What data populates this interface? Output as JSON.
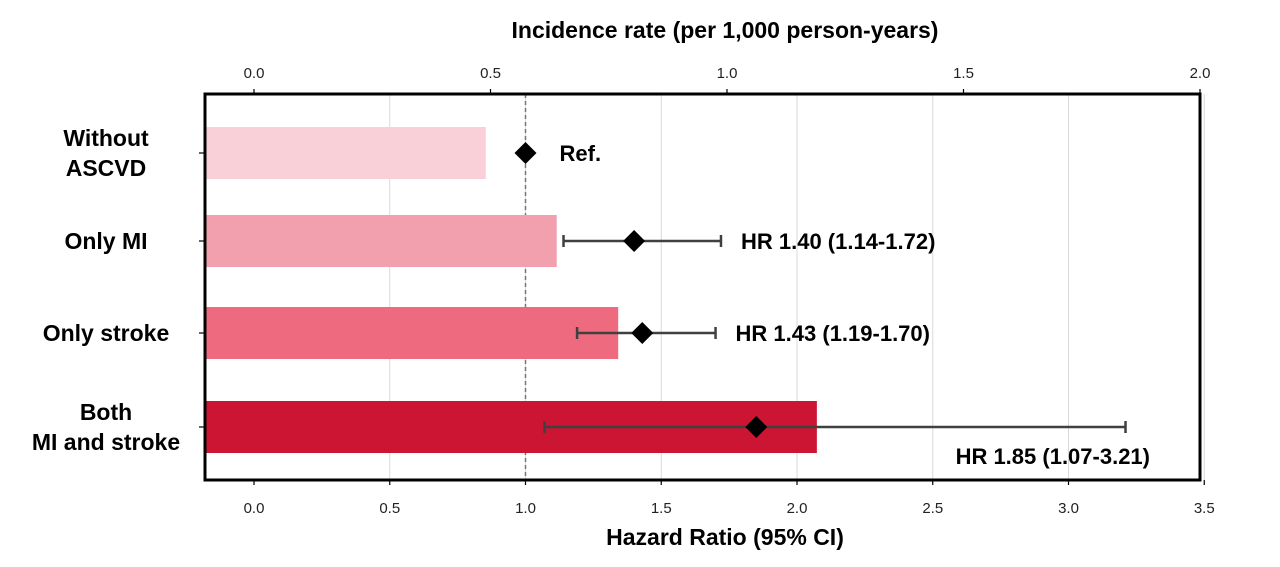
{
  "chart_data": {
    "type": "bar",
    "orientation": "horizontal",
    "categories": [
      [
        "Without",
        "ASCVD"
      ],
      [
        "Only MI"
      ],
      [
        "Only stroke"
      ],
      [
        "Both",
        "MI and stroke"
      ]
    ],
    "incidence_axis": {
      "title": "Incidence rate (per 1,000 person-years)",
      "range": [
        0,
        2.0
      ],
      "ticks": [
        "0.0",
        "0.5",
        "1.0",
        "1.5",
        "2.0"
      ]
    },
    "hr_axis": {
      "title": "Hazard Ratio (95%  CI)",
      "range": [
        0,
        3.5
      ],
      "ticks": [
        "0.0",
        "0.5",
        "1.0",
        "1.5",
        "2.0",
        "2.5",
        "3.0",
        "3.5"
      ],
      "reference": 1.0
    },
    "incidence_rates": [
      0.49,
      0.64,
      0.77,
      1.19
    ],
    "bar_colors": [
      "#f9d0d8",
      "#f3a0ae",
      "#ee6a7e",
      "#cc1433"
    ],
    "hazard_ratios": [
      {
        "hr": 1.0,
        "lower": null,
        "upper": null,
        "label": "Ref."
      },
      {
        "hr": 1.4,
        "lower": 1.14,
        "upper": 1.72,
        "label": "HR 1.40 (1.14-1.72)"
      },
      {
        "hr": 1.43,
        "lower": 1.19,
        "upper": 1.7,
        "label": "HR 1.43 (1.19-1.70)"
      },
      {
        "hr": 1.85,
        "lower": 1.07,
        "upper": 3.21,
        "label": "HR 1.85 (1.07-3.21)"
      }
    ],
    "grid": true
  }
}
